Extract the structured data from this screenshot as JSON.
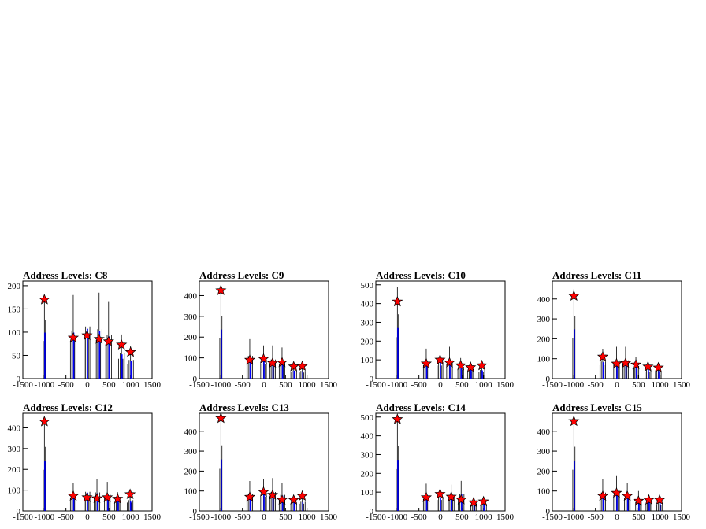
{
  "chart_data": [
    {
      "type": "histogram",
      "title": "Address Levels: C8",
      "xlim": [
        -1500,
        1500
      ],
      "ylim": [
        0,
        210
      ],
      "yticks": [
        0,
        50,
        100,
        150,
        200
      ],
      "xticks": [
        -1500,
        -1000,
        -500,
        0,
        500,
        1000,
        1500
      ],
      "peaks": [
        {
          "x": -1000,
          "y": 170
        },
        {
          "x": -330,
          "y": 88
        },
        {
          "x": -10,
          "y": 93
        },
        {
          "x": 270,
          "y": 85
        },
        {
          "x": 490,
          "y": 80
        },
        {
          "x": 790,
          "y": 73
        },
        {
          "x": 1000,
          "y": 57
        }
      ],
      "spike_max": [
        180,
        180,
        195,
        185,
        165,
        95,
        70
      ]
    },
    {
      "type": "histogram",
      "title": "Address Levels: C9",
      "xlim": [
        -1500,
        1500
      ],
      "ylim": [
        0,
        470
      ],
      "yticks": [
        0,
        100,
        200,
        300,
        400
      ],
      "xticks": [
        -1500,
        -1000,
        -500,
        0,
        500,
        1000,
        1500
      ],
      "peaks": [
        {
          "x": -1000,
          "y": 425
        },
        {
          "x": -330,
          "y": 90
        },
        {
          "x": -10,
          "y": 95
        },
        {
          "x": 200,
          "y": 75
        },
        {
          "x": 420,
          "y": 78
        },
        {
          "x": 690,
          "y": 58
        },
        {
          "x": 890,
          "y": 60
        }
      ],
      "spike_max": [
        430,
        190,
        160,
        160,
        150,
        70,
        65
      ]
    },
    {
      "type": "histogram",
      "title": "Address Levels: C10",
      "xlim": [
        -1500,
        1500
      ],
      "ylim": [
        0,
        520
      ],
      "yticks": [
        0,
        100,
        200,
        300,
        400,
        500
      ],
      "xticks": [
        -1500,
        -1000,
        -500,
        0,
        500,
        1000,
        1500
      ],
      "peaks": [
        {
          "x": -1000,
          "y": 410
        },
        {
          "x": -330,
          "y": 80
        },
        {
          "x": -10,
          "y": 100
        },
        {
          "x": 210,
          "y": 85
        },
        {
          "x": 470,
          "y": 70
        },
        {
          "x": 700,
          "y": 60
        },
        {
          "x": 960,
          "y": 70
        }
      ],
      "spike_max": [
        490,
        160,
        155,
        170,
        110,
        90,
        80
      ]
    },
    {
      "type": "histogram",
      "title": "Address Levels: C11",
      "xlim": [
        -1500,
        1500
      ],
      "ylim": [
        0,
        490
      ],
      "yticks": [
        0,
        100,
        200,
        300,
        400
      ],
      "xticks": [
        -1500,
        -1000,
        -500,
        0,
        500,
        1000,
        1500
      ],
      "peaks": [
        {
          "x": -1000,
          "y": 415
        },
        {
          "x": -330,
          "y": 110
        },
        {
          "x": -10,
          "y": 75
        },
        {
          "x": 200,
          "y": 78
        },
        {
          "x": 440,
          "y": 70
        },
        {
          "x": 720,
          "y": 60
        },
        {
          "x": 960,
          "y": 55
        }
      ],
      "spike_max": [
        450,
        150,
        160,
        160,
        110,
        80,
        70
      ]
    },
    {
      "type": "histogram",
      "title": "Address Levels: C12",
      "xlim": [
        -1500,
        1500
      ],
      "ylim": [
        0,
        470
      ],
      "yticks": [
        0,
        100,
        200,
        300,
        400
      ],
      "xticks": [
        -1500,
        -1000,
        -500,
        0,
        500,
        1000,
        1500
      ],
      "peaks": [
        {
          "x": -1000,
          "y": 430
        },
        {
          "x": -330,
          "y": 72
        },
        {
          "x": -10,
          "y": 65
        },
        {
          "x": 220,
          "y": 60
        },
        {
          "x": 460,
          "y": 65
        },
        {
          "x": 700,
          "y": 58
        },
        {
          "x": 990,
          "y": 80
        }
      ],
      "spike_max": [
        440,
        135,
        160,
        155,
        140,
        90,
        90
      ]
    },
    {
      "type": "histogram",
      "title": "Address Levels: C13",
      "xlim": [
        -1500,
        1500
      ],
      "ylim": [
        0,
        490
      ],
      "yticks": [
        0,
        100,
        200,
        300,
        400
      ],
      "xticks": [
        -1500,
        -1000,
        -500,
        0,
        500,
        1000,
        1500
      ],
      "peaks": [
        {
          "x": -1000,
          "y": 465
        },
        {
          "x": -330,
          "y": 70
        },
        {
          "x": -10,
          "y": 95
        },
        {
          "x": 200,
          "y": 80
        },
        {
          "x": 420,
          "y": 55
        },
        {
          "x": 690,
          "y": 55
        },
        {
          "x": 890,
          "y": 75
        }
      ],
      "spike_max": [
        470,
        150,
        160,
        165,
        140,
        75,
        80
      ]
    },
    {
      "type": "histogram",
      "title": "Address Levels: C14",
      "xlim": [
        -1500,
        1500
      ],
      "ylim": [
        0,
        520
      ],
      "yticks": [
        0,
        100,
        200,
        300,
        400,
        500
      ],
      "xticks": [
        -1500,
        -1000,
        -500,
        0,
        500,
        1000,
        1500
      ],
      "peaks": [
        {
          "x": -1000,
          "y": 488
        },
        {
          "x": -330,
          "y": 72
        },
        {
          "x": -10,
          "y": 90
        },
        {
          "x": 250,
          "y": 75
        },
        {
          "x": 480,
          "y": 60
        },
        {
          "x": 770,
          "y": 45
        },
        {
          "x": 1000,
          "y": 50
        }
      ],
      "spike_max": [
        495,
        145,
        130,
        140,
        160,
        70,
        65
      ]
    },
    {
      "type": "histogram",
      "title": "Address Levels: C15",
      "xlim": [
        -1500,
        1500
      ],
      "ylim": [
        0,
        490
      ],
      "yticks": [
        0,
        100,
        200,
        300,
        400
      ],
      "xticks": [
        -1500,
        -1000,
        -500,
        0,
        500,
        1000,
        1500
      ],
      "peaks": [
        {
          "x": -1000,
          "y": 450
        },
        {
          "x": -330,
          "y": 75
        },
        {
          "x": -10,
          "y": 90
        },
        {
          "x": 240,
          "y": 75
        },
        {
          "x": 500,
          "y": 50
        },
        {
          "x": 740,
          "y": 55
        },
        {
          "x": 990,
          "y": 55
        }
      ],
      "spike_max": [
        460,
        160,
        175,
        140,
        100,
        80,
        70
      ]
    }
  ],
  "colors": {
    "histogram_line": "#000000",
    "histogram_fill": "#0000ff",
    "marker_fill": "#ff0000",
    "marker_edge": "#000000",
    "frame": "#000000",
    "background": "#ffffff"
  },
  "marker_icon": "star-marker",
  "grid": false
}
